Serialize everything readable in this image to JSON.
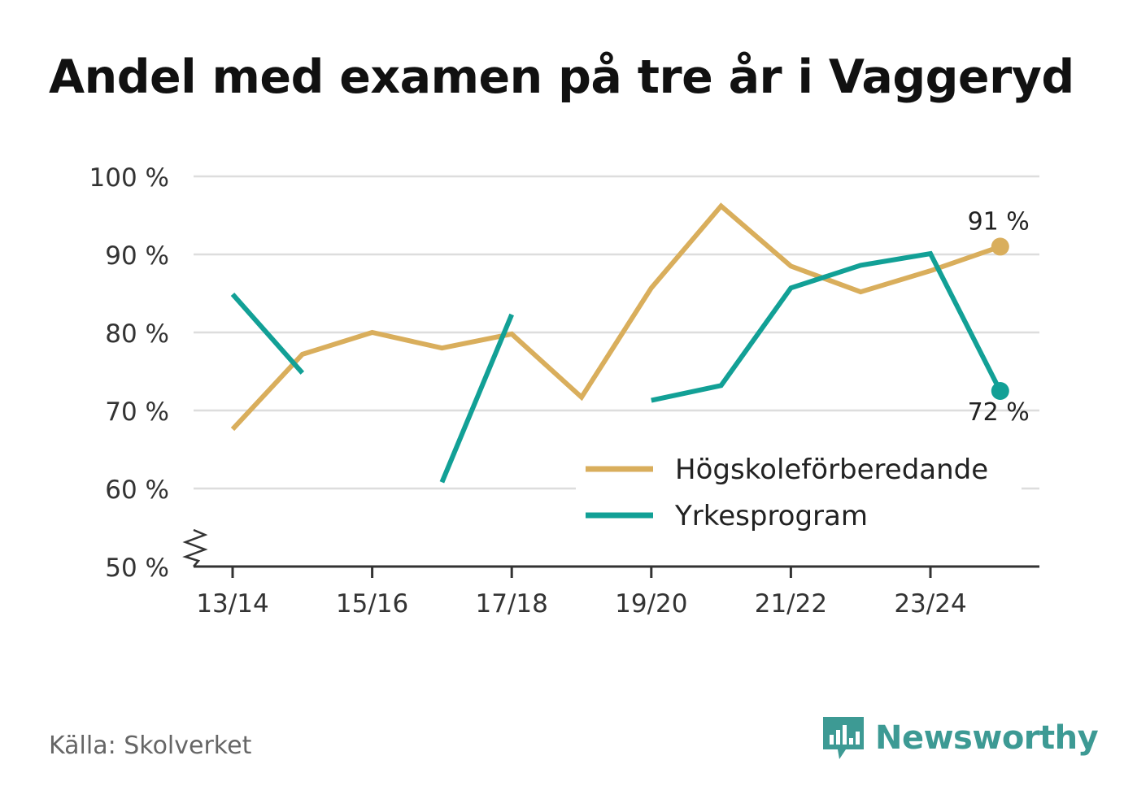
{
  "title": "Andel med examen på tre år i Vaggeryd",
  "source": "Källa: Skolverket",
  "brand": "Newsworthy",
  "colors": {
    "hogskole": "#d9ae5c",
    "yrkes": "#12a096",
    "grid": "#dddddd",
    "axis": "#333333"
  },
  "chart_data": {
    "type": "line",
    "title": "Andel med examen på tre år i Vaggeryd",
    "x": [
      "13/14",
      "14/15",
      "15/16",
      "16/17",
      "17/18",
      "18/19",
      "19/20",
      "20/21",
      "21/22",
      "22/23",
      "23/24",
      "24/25"
    ],
    "x_tick_labels": [
      "13/14",
      "15/16",
      "17/18",
      "19/20",
      "21/22",
      "23/24"
    ],
    "y_tick_labels": [
      "100 %",
      "90 %",
      "80 %",
      "70 %",
      "60 %",
      "50 %"
    ],
    "y_ticks": [
      100,
      90,
      80,
      70,
      60,
      50
    ],
    "ylim": [
      50,
      100
    ],
    "xlabel": "",
    "ylabel": "",
    "series": [
      {
        "name": "Högskoleförberedande",
        "key": "hogskole",
        "values": [
          67.6,
          77.2,
          80.0,
          78.0,
          79.8,
          71.7,
          85.7,
          96.2,
          88.5,
          85.2,
          87.9,
          91.0
        ]
      },
      {
        "name": "Yrkesprogram",
        "key": "yrkes",
        "values": [
          84.9,
          74.8,
          null,
          60.8,
          82.3,
          null,
          71.3,
          73.2,
          85.7,
          88.6,
          90.1,
          72.5
        ]
      }
    ],
    "end_labels": {
      "hogskole": "91 %",
      "yrkes": "72 %"
    },
    "legend": "bottom-right",
    "grid": true
  }
}
